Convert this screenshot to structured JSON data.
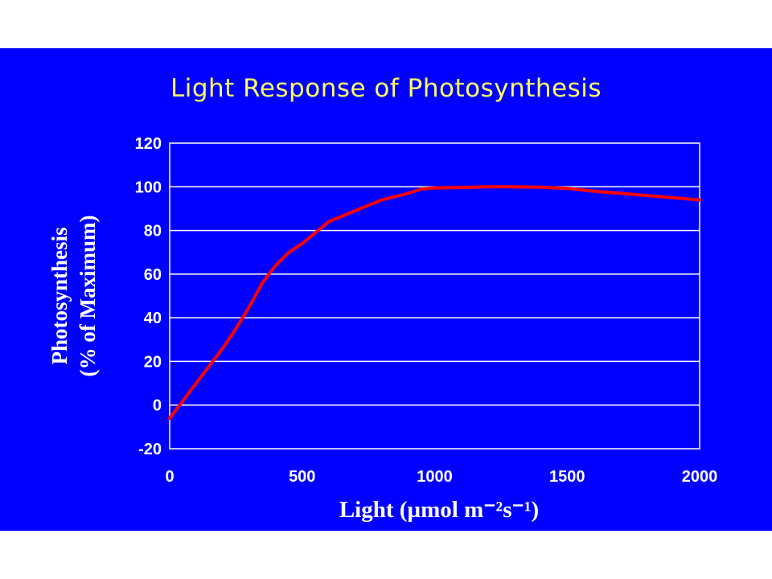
{
  "title": "Light Response of Photosynthesis",
  "colors": {
    "background": "#0000ff",
    "title": "#ffff66",
    "line": "#ff0000",
    "grid": "#ffffff",
    "text": "#ffffff"
  },
  "chart_data": {
    "type": "line",
    "title": "Light Response of Photosynthesis",
    "xlabel": "Light  (µmol m⁻²s⁻¹)",
    "ylabel_line1": "Photosynthesis",
    "ylabel_line2": "(% of Maximum)",
    "xlim": [
      0,
      2000
    ],
    "ylim": [
      -20,
      120
    ],
    "xticks": [
      0,
      500,
      1000,
      1500,
      2000
    ],
    "yticks": [
      -20,
      0,
      20,
      40,
      60,
      80,
      100,
      120
    ],
    "grid": "horizontal",
    "legend": "none",
    "series": [
      {
        "x": [
          0,
          50,
          100,
          150,
          200,
          250,
          300,
          350,
          400,
          450,
          500,
          550,
          600,
          700,
          800,
          900,
          950,
          1000,
          1100,
          1200,
          1300,
          1400,
          1500,
          1600,
          1700,
          1800,
          1900,
          2000
        ],
        "y": [
          -6,
          2,
          10,
          18,
          26,
          35,
          45,
          56,
          64,
          70,
          74,
          79,
          84,
          89,
          94,
          97,
          99,
          99.5,
          99.7,
          100,
          100,
          99.8,
          99.3,
          98,
          97,
          96,
          95,
          94
        ]
      }
    ]
  }
}
